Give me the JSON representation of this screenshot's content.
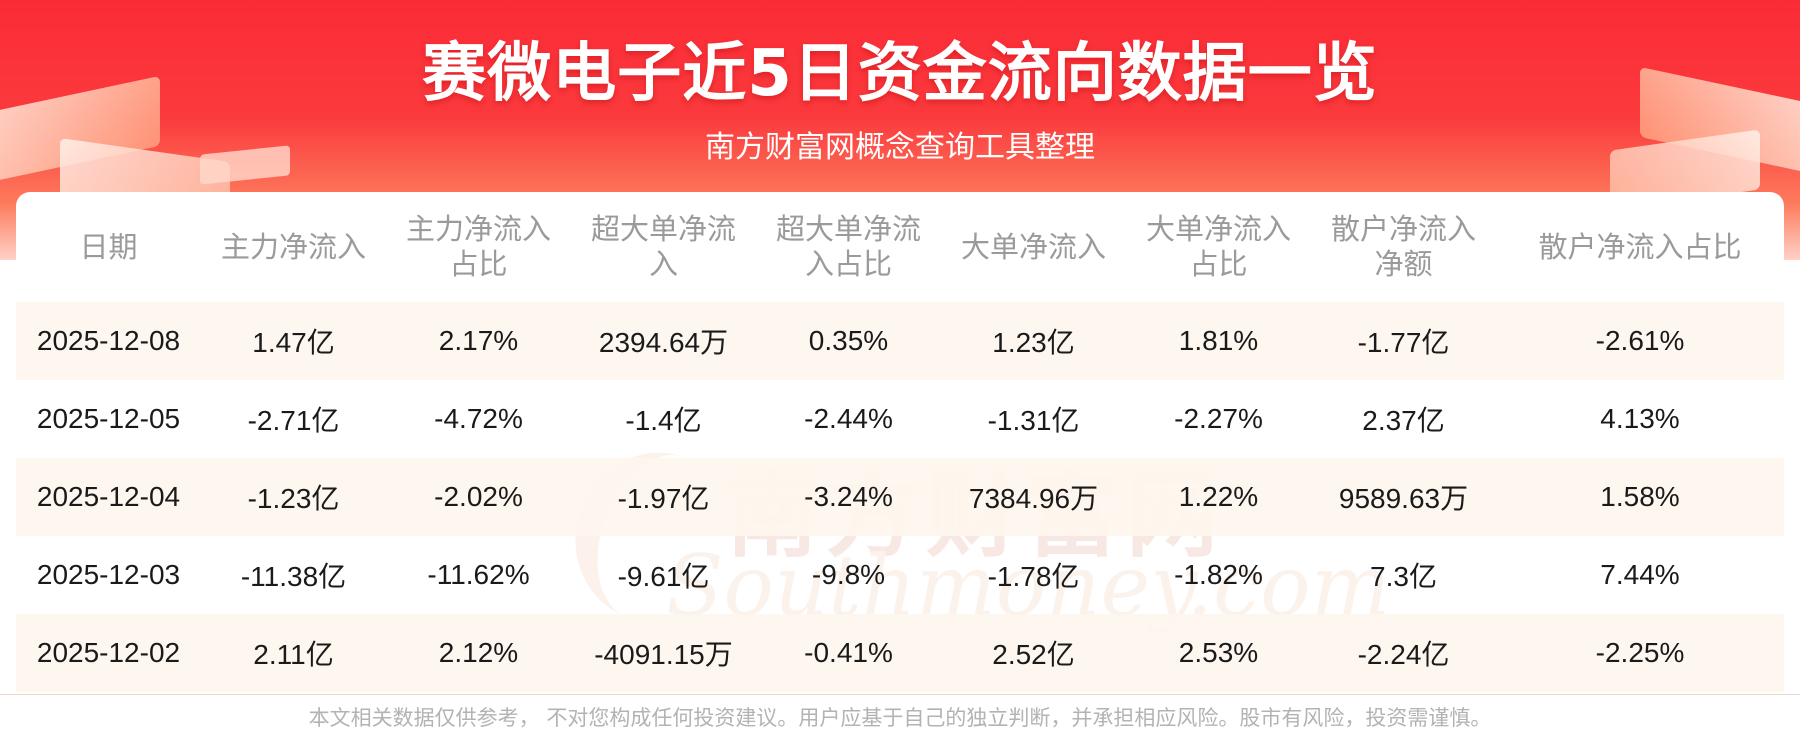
{
  "header": {
    "title": "赛微电子近5日资金流向数据一览",
    "subtitle": "南方财富网概念查询工具整理"
  },
  "watermark": {
    "cn": "南方财富网",
    "en": "Southmoney.com"
  },
  "table": {
    "columns": [
      "日期",
      "主力净流入",
      "主力净流入占比",
      "超大单净流入",
      "超大单净流入占比",
      "大单净流入",
      "大单净流入占比",
      "散户净流入净额",
      "散户净流入占比"
    ],
    "rows": [
      [
        "2025-12-08",
        "1.47亿",
        "2.17%",
        "2394.64万",
        "0.35%",
        "1.23亿",
        "1.81%",
        "-1.77亿",
        "-2.61%"
      ],
      [
        "2025-12-05",
        "-2.71亿",
        "-4.72%",
        "-1.4亿",
        "-2.44%",
        "-1.31亿",
        "-2.27%",
        "2.37亿",
        "4.13%"
      ],
      [
        "2025-12-04",
        "-1.23亿",
        "-2.02%",
        "-1.97亿",
        "-3.24%",
        "7384.96万",
        "1.22%",
        "9589.63万",
        "1.58%"
      ],
      [
        "2025-12-03",
        "-11.38亿",
        "-11.62%",
        "-9.61亿",
        "-9.8%",
        "-1.78亿",
        "-1.82%",
        "7.3亿",
        "7.44%"
      ],
      [
        "2025-12-02",
        "2.11亿",
        "2.12%",
        "-4091.15万",
        "-0.41%",
        "2.52亿",
        "2.53%",
        "-2.24亿",
        "-2.25%"
      ]
    ]
  },
  "footer": {
    "disclaimer": "本文相关数据仅供参考， 不对您构成任何投资建议。用户应基于自己的独立判断，并承担相应风险。股市有风险，投资需谨慎。"
  },
  "colors": {
    "banner_red": "#fb2b36",
    "header_text": "#9a9a9a",
    "row_stripe": "#fef6ee",
    "footer_text": "#b3b3b3"
  }
}
